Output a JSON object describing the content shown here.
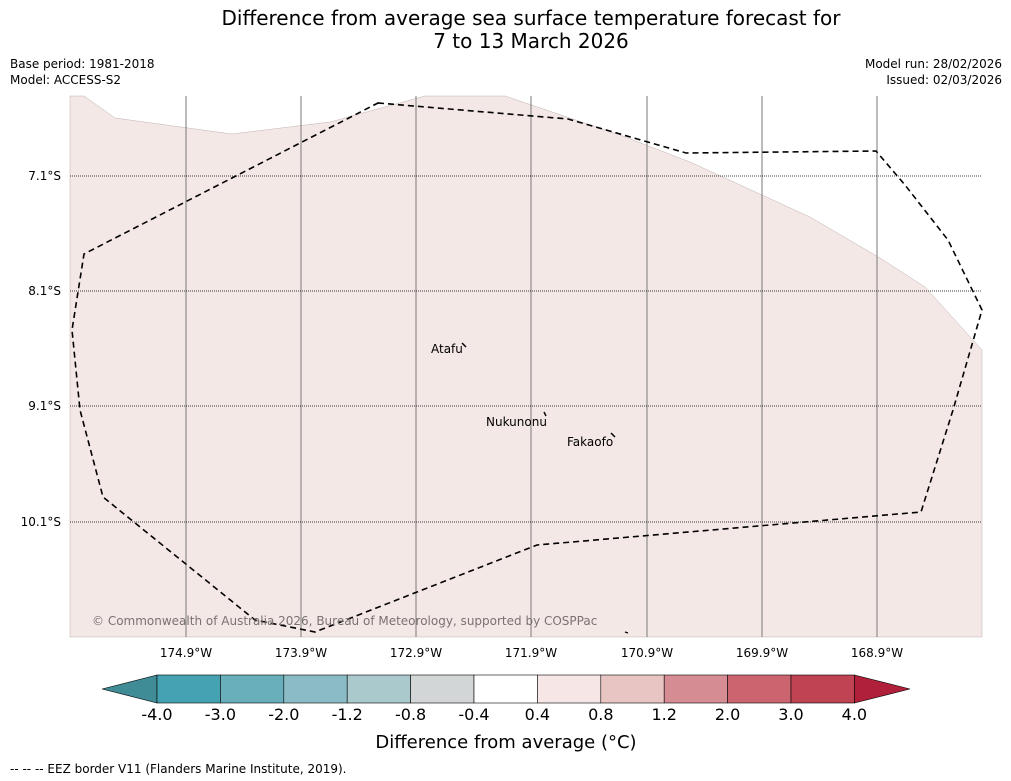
{
  "header": {
    "title_line1": "Difference from average sea surface temperature forecast for",
    "title_line2": "7 to 13 March 2026",
    "base_period": "Base period: 1981-2018",
    "model": "Model: ACCESS-S2",
    "model_run": "Model run: 28/02/2026",
    "issued": "Issued: 02/03/2026"
  },
  "map": {
    "lat_labels": [
      "7.1°S",
      "8.1°S",
      "9.1°S",
      "10.1°S"
    ],
    "lon_labels": [
      "174.9°W",
      "173.9°W",
      "172.9°W",
      "171.9°W",
      "170.9°W",
      "169.9°W",
      "168.9°W"
    ],
    "places": [
      "Atafu",
      "Nukunonu",
      "Fakaofo"
    ],
    "copyright": "© Commonwealth of Australia 2026, Bureau of Meteorology, supported by COSPPac",
    "anomaly_fill_color": "#f4e8e7"
  },
  "colorbar": {
    "ticks": [
      "-4.0",
      "-3.0",
      "-2.0",
      "-1.2",
      "-0.8",
      "-0.4",
      "0.4",
      "0.8",
      "1.2",
      "2.0",
      "3.0",
      "4.0"
    ],
    "colors": [
      "#3f8c96",
      "#44a2b2",
      "#68aebb",
      "#8bbbc4",
      "#a9c9cc",
      "#d3d6d6",
      "#ffffff",
      "#f6e6e5",
      "#e8c5c2",
      "#d58c93",
      "#cc6470",
      "#bf4352",
      "#b0203a"
    ],
    "title": "Difference from average (°C)"
  },
  "footer": {
    "legend": "-- -- -- EEZ border V11 (Flanders Marine Institute, 2019)."
  }
}
